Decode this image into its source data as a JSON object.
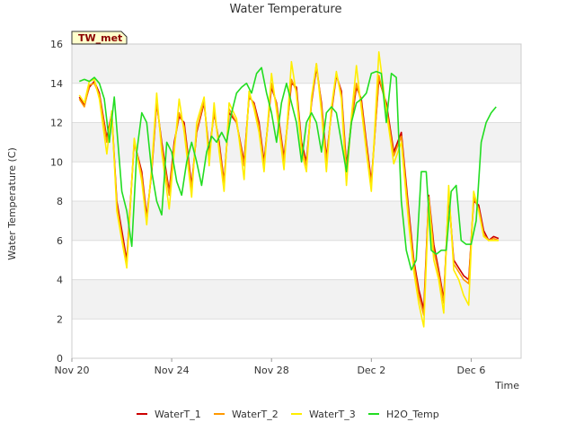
{
  "chart_data": {
    "type": "line",
    "title": "Water Temperature",
    "xlabel": "Time",
    "ylabel": "Water Temperature (C)",
    "station_label": "TW_met",
    "x_unit": "days since Nov 20",
    "xlim": [
      0,
      18
    ],
    "ylim": [
      0,
      16
    ],
    "yticks": [
      0,
      2,
      4,
      6,
      8,
      10,
      12,
      14,
      16
    ],
    "xticks": [
      {
        "value": 0,
        "label": "Nov 20"
      },
      {
        "value": 4,
        "label": "Nov 24"
      },
      {
        "value": 8,
        "label": "Nov 28"
      },
      {
        "value": 12,
        "label": "Dec 2"
      },
      {
        "value": 16,
        "label": "Dec 6"
      }
    ],
    "grid": true,
    "banded_background": true,
    "legend_position": "bottom",
    "series": [
      {
        "name": "WaterT_1",
        "color": "#cc0000",
        "x": [
          0.3,
          0.5,
          0.7,
          0.9,
          1.1,
          1.4,
          1.6,
          1.8,
          2.0,
          2.2,
          2.5,
          2.8,
          3.0,
          3.2,
          3.4,
          3.6,
          3.9,
          4.1,
          4.3,
          4.5,
          4.8,
          5.0,
          5.3,
          5.5,
          5.7,
          5.9,
          6.1,
          6.3,
          6.6,
          6.9,
          7.1,
          7.3,
          7.5,
          7.7,
          8.0,
          8.2,
          8.5,
          8.8,
          9.0,
          9.2,
          9.4,
          9.6,
          9.8,
          10.0,
          10.2,
          10.4,
          10.6,
          10.8,
          11.0,
          11.2,
          11.4,
          11.6,
          11.8,
          12.0,
          12.3,
          12.6,
          12.9,
          13.2,
          13.5,
          13.7,
          13.9,
          14.1,
          14.3,
          14.5,
          14.7,
          14.9,
          15.1,
          15.3,
          15.5,
          15.7,
          15.9,
          16.1,
          16.3,
          16.5,
          16.7,
          16.9,
          17.1
        ],
        "y": [
          13.3,
          12.9,
          13.8,
          14.1,
          13.5,
          11.2,
          12.5,
          8.0,
          6.5,
          5.0,
          11.0,
          9.5,
          7.2,
          9.5,
          13.0,
          11.0,
          8.5,
          11.0,
          12.3,
          12.0,
          8.8,
          11.5,
          13.0,
          10.5,
          12.5,
          11.0,
          9.0,
          12.5,
          12.0,
          10.0,
          13.3,
          13.0,
          12.0,
          10.0,
          13.8,
          13.0,
          10.2,
          14.0,
          13.8,
          11.0,
          10.0,
          13.0,
          14.8,
          13.0,
          10.2,
          12.5,
          14.4,
          13.6,
          9.8,
          12.0,
          13.8,
          13.2,
          11.0,
          9.0,
          14.2,
          13.0,
          10.5,
          11.5,
          7.5,
          5.0,
          3.5,
          2.5,
          8.3,
          5.8,
          4.5,
          3.0,
          8.3,
          5.0,
          4.6,
          4.2,
          4.0,
          8.0,
          7.8,
          6.5,
          6.0,
          6.2,
          6.1
        ]
      },
      {
        "name": "WaterT_2",
        "color": "#ff9900",
        "x": [
          0.3,
          0.5,
          0.7,
          0.9,
          1.1,
          1.4,
          1.6,
          1.8,
          2.0,
          2.2,
          2.5,
          2.8,
          3.0,
          3.2,
          3.4,
          3.6,
          3.9,
          4.1,
          4.3,
          4.5,
          4.8,
          5.0,
          5.3,
          5.5,
          5.7,
          5.9,
          6.1,
          6.3,
          6.6,
          6.9,
          7.1,
          7.3,
          7.5,
          7.7,
          8.0,
          8.2,
          8.5,
          8.8,
          9.0,
          9.2,
          9.4,
          9.6,
          9.8,
          10.0,
          10.2,
          10.4,
          10.6,
          10.8,
          11.0,
          11.2,
          11.4,
          11.6,
          11.8,
          12.0,
          12.3,
          12.6,
          12.9,
          13.2,
          13.5,
          13.7,
          13.9,
          14.1,
          14.3,
          14.5,
          14.7,
          14.9,
          15.1,
          15.3,
          15.5,
          15.7,
          15.9,
          16.1,
          16.3,
          16.5,
          16.7,
          16.9,
          17.1
        ],
        "y": [
          13.2,
          12.8,
          13.9,
          14.0,
          13.4,
          11.0,
          12.4,
          7.8,
          6.2,
          4.8,
          11.0,
          9.3,
          7.0,
          9.6,
          13.1,
          10.8,
          8.3,
          10.8,
          12.5,
          11.8,
          8.6,
          11.6,
          13.1,
          10.2,
          12.6,
          10.8,
          8.9,
          12.7,
          12.0,
          9.8,
          13.4,
          12.9,
          11.8,
          9.8,
          14.0,
          12.9,
          10.0,
          14.2,
          13.6,
          10.8,
          9.8,
          13.1,
          15.0,
          12.8,
          10.0,
          12.6,
          14.5,
          13.4,
          9.6,
          12.1,
          14.0,
          13.0,
          10.8,
          8.8,
          14.4,
          12.8,
          10.3,
          11.3,
          7.2,
          4.8,
          3.2,
          2.2,
          8.2,
          5.5,
          4.3,
          2.8,
          8.5,
          4.8,
          4.4,
          4.0,
          3.8,
          8.2,
          7.6,
          6.3,
          6.0,
          6.1,
          6.0
        ]
      },
      {
        "name": "WaterT_3",
        "color": "#ffee00",
        "x": [
          0.3,
          0.5,
          0.7,
          0.9,
          1.1,
          1.4,
          1.6,
          1.8,
          2.0,
          2.2,
          2.5,
          2.8,
          3.0,
          3.2,
          3.4,
          3.6,
          3.9,
          4.1,
          4.3,
          4.5,
          4.8,
          5.0,
          5.3,
          5.5,
          5.7,
          5.9,
          6.1,
          6.3,
          6.6,
          6.9,
          7.1,
          7.3,
          7.5,
          7.7,
          8.0,
          8.2,
          8.5,
          8.8,
          9.0,
          9.2,
          9.4,
          9.6,
          9.8,
          10.0,
          10.2,
          10.4,
          10.6,
          10.8,
          11.0,
          11.2,
          11.4,
          11.6,
          11.8,
          12.0,
          12.3,
          12.6,
          12.9,
          13.2,
          13.5,
          13.7,
          13.9,
          14.1,
          14.3,
          14.5,
          14.7,
          14.9,
          15.1,
          15.3,
          15.5,
          15.7,
          15.9,
          16.1,
          16.3,
          16.5,
          16.7,
          16.9,
          17.1
        ],
        "y": [
          13.4,
          13.0,
          14.1,
          14.2,
          13.2,
          10.4,
          12.6,
          7.5,
          6.0,
          4.6,
          11.2,
          9.0,
          6.8,
          9.8,
          13.5,
          10.5,
          7.6,
          10.5,
          13.2,
          11.5,
          8.2,
          12.0,
          13.3,
          9.8,
          13.0,
          10.5,
          8.5,
          13.0,
          12.2,
          9.1,
          13.6,
          12.7,
          11.5,
          9.5,
          14.5,
          12.6,
          9.6,
          15.1,
          13.4,
          10.5,
          9.5,
          13.3,
          15.0,
          12.5,
          9.5,
          12.8,
          14.6,
          13.2,
          8.8,
          12.3,
          14.9,
          12.7,
          10.5,
          8.5,
          15.6,
          12.6,
          9.9,
          11.0,
          6.8,
          4.4,
          2.8,
          1.6,
          8.0,
          5.0,
          4.0,
          2.3,
          8.8,
          4.5,
          4.0,
          3.2,
          2.7,
          8.5,
          7.5,
          6.2,
          6.0,
          6.0,
          6.0
        ]
      },
      {
        "name": "H2O_Temp",
        "color": "#22dd22",
        "x": [
          0.3,
          0.5,
          0.7,
          0.9,
          1.1,
          1.3,
          1.5,
          1.7,
          2.0,
          2.2,
          2.4,
          2.6,
          2.8,
          3.0,
          3.2,
          3.4,
          3.6,
          3.8,
          4.0,
          4.2,
          4.4,
          4.6,
          4.8,
          5.0,
          5.2,
          5.4,
          5.6,
          5.8,
          6.0,
          6.2,
          6.4,
          6.6,
          6.8,
          7.0,
          7.2,
          7.4,
          7.6,
          7.8,
          8.0,
          8.2,
          8.4,
          8.6,
          8.8,
          9.0,
          9.2,
          9.4,
          9.6,
          9.8,
          10.0,
          10.2,
          10.4,
          10.6,
          10.8,
          11.0,
          11.2,
          11.4,
          11.6,
          11.8,
          12.0,
          12.2,
          12.4,
          12.6,
          12.8,
          13.0,
          13.2,
          13.4,
          13.6,
          13.8,
          14.0,
          14.2,
          14.4,
          14.6,
          14.8,
          15.0,
          15.2,
          15.4,
          15.6,
          15.8,
          16.0,
          16.2,
          16.4,
          16.6,
          16.8,
          17.0
        ],
        "y": [
          14.1,
          14.2,
          14.1,
          14.3,
          14.0,
          13.2,
          11.0,
          13.3,
          8.5,
          7.5,
          5.7,
          10.5,
          12.5,
          12.0,
          9.5,
          8.0,
          7.3,
          11.0,
          10.5,
          9.0,
          8.3,
          10.0,
          11.0,
          10.0,
          8.8,
          10.5,
          11.3,
          11.0,
          11.5,
          11.0,
          12.5,
          13.5,
          13.8,
          14.0,
          13.5,
          14.5,
          14.8,
          13.5,
          12.5,
          11.0,
          13.0,
          14.0,
          13.0,
          12.0,
          10.0,
          12.0,
          12.5,
          12.0,
          10.5,
          12.5,
          12.8,
          12.5,
          11.0,
          9.5,
          12.0,
          13.0,
          13.2,
          13.5,
          14.5,
          14.6,
          14.5,
          12.0,
          14.5,
          14.3,
          8.0,
          5.5,
          4.5,
          5.0,
          9.5,
          9.5,
          5.5,
          5.3,
          5.5,
          5.5,
          8.5,
          8.8,
          6.0,
          5.8,
          5.8,
          7.0,
          11.0,
          12.0,
          12.5,
          12.8
        ]
      }
    ]
  }
}
